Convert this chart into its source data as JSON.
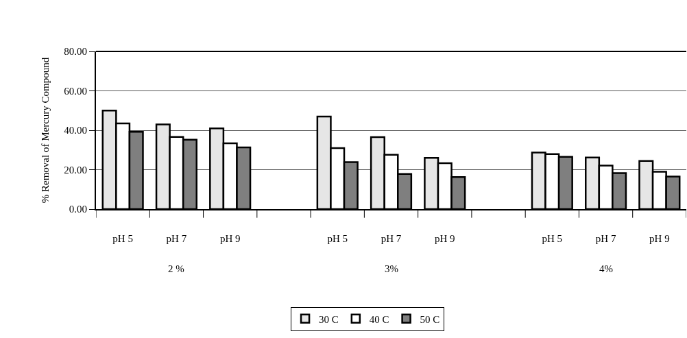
{
  "chart_data": {
    "type": "bar",
    "ylabel": "% Removal of Mercury Compound",
    "categories": [
      "pH 5",
      "pH 7",
      "pH 9",
      null,
      "pH 5",
      "pH 7",
      "pH 9",
      null,
      "pH 5",
      "pH 7",
      "pH 9"
    ],
    "series": [
      {
        "name": "30 C",
        "color": "#e6e6e6",
        "values": [
          50,
          43,
          41,
          null,
          47,
          36.5,
          26,
          null,
          28.7,
          26.2,
          24.4
        ]
      },
      {
        "name": "40 C",
        "color": "#ffffff",
        "values": [
          43.5,
          36.6,
          33.4,
          null,
          31,
          27.6,
          23.3,
          null,
          27.9,
          22.1,
          19
        ]
      },
      {
        "name": "50 C",
        "color": "#7f7f7f",
        "values": [
          39.2,
          35.2,
          31.3,
          null,
          23.8,
          17.8,
          16.3,
          null,
          26.5,
          18.3,
          16.5
        ]
      }
    ],
    "annotations": [
      "2 %",
      "3%",
      "4%"
    ],
    "ylim": [
      0,
      80
    ],
    "yticks": [
      {
        "value": 0,
        "label": "0.00"
      },
      {
        "value": 20,
        "label": "20.00"
      },
      {
        "value": 40,
        "label": "40.00"
      },
      {
        "value": 60,
        "label": "60.00"
      },
      {
        "value": 80,
        "label": "80.00"
      }
    ],
    "grid": "y",
    "legend": "bottom"
  }
}
